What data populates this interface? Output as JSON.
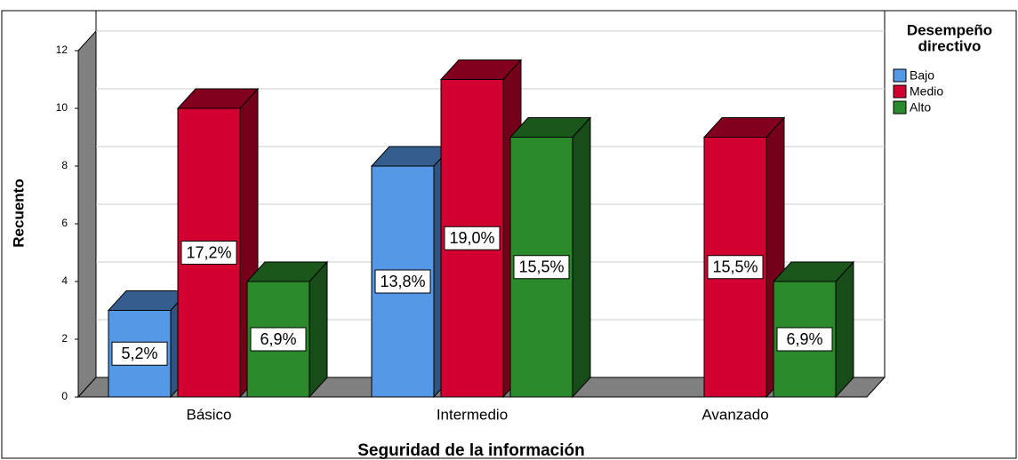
{
  "chart_data": {
    "type": "bar3d",
    "x_label": "Seguridad de la información",
    "y_label": "Recuento",
    "legend_title": [
      "Desempeño",
      "directivo"
    ],
    "categories": [
      "Básico",
      "Intermedio",
      "Avanzado"
    ],
    "ylim": [
      0,
      12
    ],
    "yticks": [
      0,
      2,
      4,
      6,
      8,
      10,
      12
    ],
    "grid": true,
    "series": [
      {
        "name": "Bajo",
        "color": "#5598e6",
        "values": [
          3,
          8,
          0
        ],
        "percentages": [
          5.2,
          13.8,
          null
        ],
        "percentage_labels": [
          "5,2%",
          "13,8%",
          null
        ]
      },
      {
        "name": "Medio",
        "color": "#d20030",
        "values": [
          10,
          11,
          9
        ],
        "percentages": [
          17.2,
          19.0,
          15.5
        ],
        "percentage_labels": [
          "17,2%",
          "19,0%",
          "15,5%"
        ]
      },
      {
        "name": "Alto",
        "color": "#2b8a2b",
        "values": [
          4,
          9,
          4
        ],
        "percentages": [
          6.9,
          15.5,
          6.9
        ],
        "percentage_labels": [
          "6,9%",
          "15,5%",
          "6,9%"
        ]
      }
    ]
  }
}
